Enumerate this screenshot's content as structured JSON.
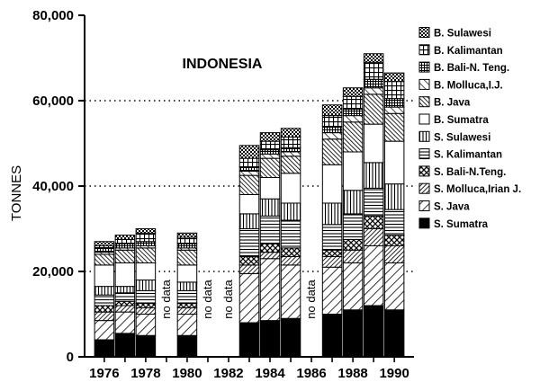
{
  "chart_data": {
    "type": "bar",
    "stacked": true,
    "title": "INDONESIA",
    "ylabel": "TONNES",
    "xlabel": "",
    "ylim": [
      0,
      80000
    ],
    "y_ticks": [
      "0",
      "20,000",
      "40,000",
      "60,000",
      "80,000"
    ],
    "y_tick_values": [
      0,
      20000,
      40000,
      60000,
      80000
    ],
    "x_ticks": [
      "1976",
      "1978",
      "1980",
      "1982",
      "1984",
      "1986",
      "1988",
      "1990"
    ],
    "x_tick_values": [
      1976,
      1978,
      1980,
      1982,
      1984,
      1986,
      1988,
      1990
    ],
    "dotted_reference_lines": [
      20000,
      40000,
      60000
    ],
    "legend_position": "right",
    "no_data_label": "no data",
    "no_data_years": [
      1979,
      1981,
      1982,
      1986
    ],
    "years": [
      1976,
      1977,
      1978,
      1980,
      1983,
      1984,
      1985,
      1987,
      1988,
      1989,
      1990
    ],
    "series": [
      {
        "name": "S. Sumatra",
        "pattern": "solid",
        "values": [
          4000,
          5500,
          5000,
          5000,
          8000,
          8500,
          9000,
          10000,
          11000,
          12000,
          11000
        ]
      },
      {
        "name": "S. Java",
        "pattern": "diag-light",
        "values": [
          4500,
          5000,
          5000,
          5000,
          11500,
          14500,
          12500,
          11000,
          11000,
          14000,
          11000
        ]
      },
      {
        "name": "S. Molluca,Irian J.",
        "pattern": "diag-dense",
        "values": [
          2000,
          1500,
          1500,
          1500,
          2000,
          1500,
          2000,
          2500,
          3000,
          4000,
          4000
        ]
      },
      {
        "name": "S. Bali-N.Teng.",
        "pattern": "cross",
        "values": [
          1500,
          1000,
          1000,
          1000,
          2000,
          2000,
          2000,
          1500,
          2500,
          3000,
          2500
        ]
      },
      {
        "name": "S. Kalimantan",
        "pattern": "hlines",
        "values": [
          2500,
          2000,
          3000,
          3000,
          6500,
          6500,
          6500,
          6000,
          6000,
          6500,
          6000
        ]
      },
      {
        "name": "S. Sulawesi",
        "pattern": "vlines",
        "values": [
          2000,
          1500,
          2500,
          2000,
          3500,
          4000,
          4000,
          5000,
          5500,
          6000,
          6000
        ]
      },
      {
        "name": "B. Sumatra",
        "pattern": "white",
        "values": [
          5000,
          5500,
          4000,
          4000,
          4500,
          5000,
          7000,
          9000,
          9000,
          9000,
          10000
        ]
      },
      {
        "name": "B. Java",
        "pattern": "diag-dense-rev",
        "values": [
          2500,
          3000,
          3500,
          3500,
          4500,
          4500,
          4000,
          6000,
          7000,
          7000,
          6500
        ]
      },
      {
        "name": "B. Molluca,I.J.",
        "pattern": "diag-light-rev",
        "values": [
          500,
          500,
          500,
          500,
          1000,
          1000,
          1000,
          1500,
          1500,
          1500,
          1500
        ]
      },
      {
        "name": "B. Bali-N. Teng.",
        "pattern": "grid-dense",
        "values": [
          1000,
          1000,
          1000,
          1000,
          1000,
          1000,
          1000,
          1500,
          1500,
          2000,
          2000
        ]
      },
      {
        "name": "B. Kalimantan",
        "pattern": "grid",
        "values": [
          500,
          1000,
          2000,
          1500,
          2000,
          2000,
          2500,
          2500,
          3000,
          4000,
          4000
        ]
      },
      {
        "name": "B. Sulawesi",
        "pattern": "checker",
        "values": [
          1000,
          1000,
          1000,
          1000,
          3000,
          2000,
          2000,
          2500,
          2000,
          2000,
          2000
        ]
      }
    ]
  }
}
